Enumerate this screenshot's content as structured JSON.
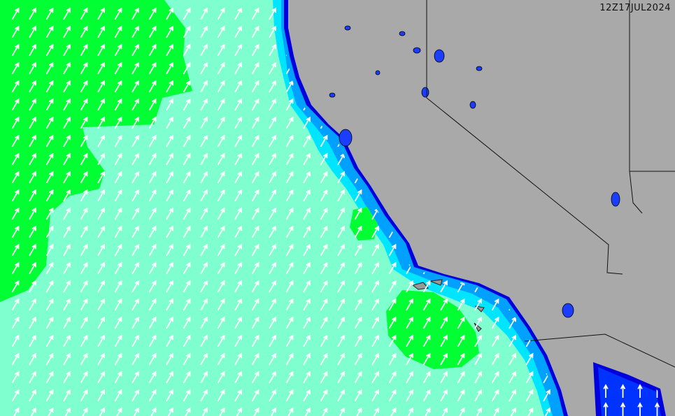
{
  "map": {
    "timestamp": "12Z17JUL2024",
    "colors": {
      "land": "#a9a9a9",
      "lake": "#1a3dff",
      "ocean_low": "#7fffd0",
      "ocean_mid": "#00ff33",
      "coastal_high": "#00e5ff",
      "coastal_higher": "#00a0ff",
      "coastal_edge": "#0000dd",
      "arrow": "#ffffff",
      "border": "#111111"
    },
    "arrow_direction": "north-east",
    "arrow_direction_gulf": "north"
  }
}
